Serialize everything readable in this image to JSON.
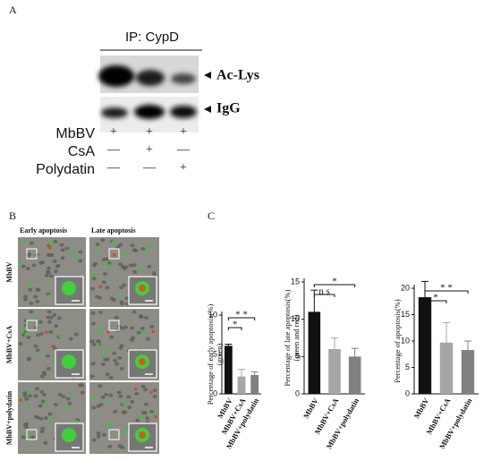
{
  "panel_labels": [
    "A",
    "B",
    "C"
  ],
  "blot": {
    "title": "IP: CypD",
    "bands": [
      "Ac-Lys",
      "IgG"
    ],
    "rows": [
      {
        "name": "MbBV",
        "signs": [
          "+",
          "+",
          "+"
        ]
      },
      {
        "name": "CsA",
        "signs": [
          "—",
          "+",
          "—"
        ]
      },
      {
        "name": "Polydatin",
        "signs": [
          "—",
          "—",
          "+"
        ]
      }
    ]
  },
  "micrographs": {
    "columns": [
      "Early apoptosis",
      "Late apoptosis"
    ],
    "rows": [
      "MbBV",
      "MbBV+CsA",
      "MbBV+polydatin"
    ]
  },
  "chart_data": [
    {
      "type": "bar",
      "ylabel": [
        "Percentage of early apoptosis(%)",
        "(green)"
      ],
      "categories": [
        "MbBV",
        "MbBV+CsA",
        "MbBV+polydatin"
      ],
      "values": [
        6.1,
        2.2,
        2.4
      ],
      "errors": [
        0.2,
        0.9,
        0.4
      ],
      "colors": [
        "#111111",
        "#a6a6a6",
        "#808080"
      ],
      "ylim": [
        0,
        10
      ],
      "yticks": [
        0,
        5,
        10
      ],
      "annotations": [
        "*",
        "* *"
      ]
    },
    {
      "type": "bar",
      "ylabel": [
        "Percentage of late apoptosis(%)",
        "(green and red)"
      ],
      "categories": [
        "MbBV",
        "MbBV+CsA",
        "MbBV+polydatin"
      ],
      "values": [
        11,
        6,
        5
      ],
      "errors": [
        2.9,
        1.5,
        1.1
      ],
      "colors": [
        "#111111",
        "#a6a6a6",
        "#808080"
      ],
      "ylim": [
        0,
        15
      ],
      "yticks": [
        0,
        5,
        10,
        15
      ],
      "annotations": [
        "n s",
        "*"
      ]
    },
    {
      "type": "bar",
      "ylabel": [
        "Percentage of  apoptosis(%)"
      ],
      "categories": [
        "MbBV",
        "MbBV+CsA",
        "MbBV+polydatin"
      ],
      "values": [
        18.3,
        9.7,
        8.3
      ],
      "errors": [
        3,
        3.8,
        1.7
      ],
      "colors": [
        "#111111",
        "#a6a6a6",
        "#808080"
      ],
      "ylim": [
        0,
        20
      ],
      "yticks": [
        0,
        5,
        10,
        15,
        20
      ],
      "annotations": [
        "*",
        "* *"
      ]
    }
  ]
}
